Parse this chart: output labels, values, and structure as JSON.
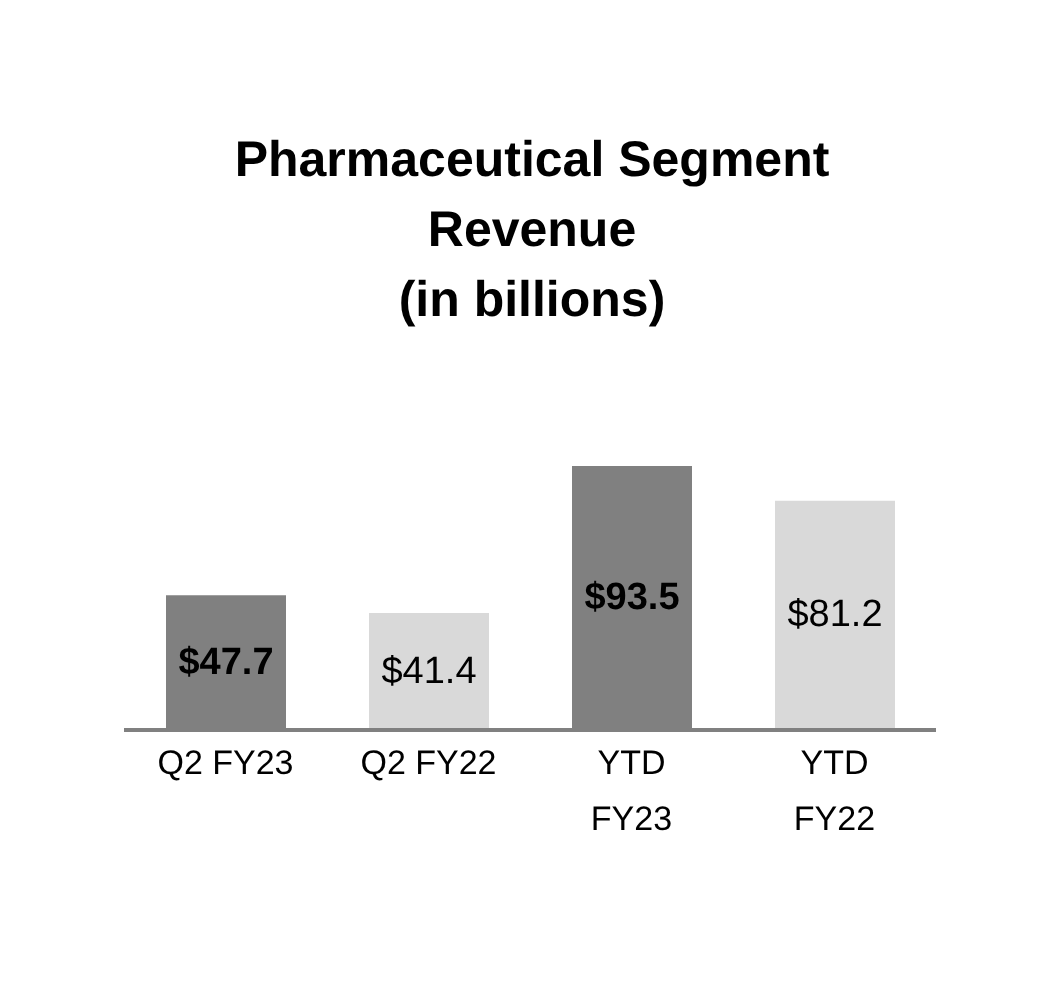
{
  "chart_data": {
    "type": "bar",
    "title": "Pharmaceutical Segment\nRevenue\n(in billions)",
    "categories": [
      "Q2 FY23",
      "Q2 FY22",
      "YTD\nFY23",
      "YTD\nFY22"
    ],
    "values": [
      47.7,
      41.4,
      93.5,
      81.2
    ],
    "colors": [
      "#808080",
      "#d9d9d9",
      "#808080",
      "#d9d9d9"
    ],
    "value_labels": [
      "$47.7",
      "$41.4",
      "$93.5",
      "$81.2"
    ],
    "grid": false,
    "legend": false
  }
}
